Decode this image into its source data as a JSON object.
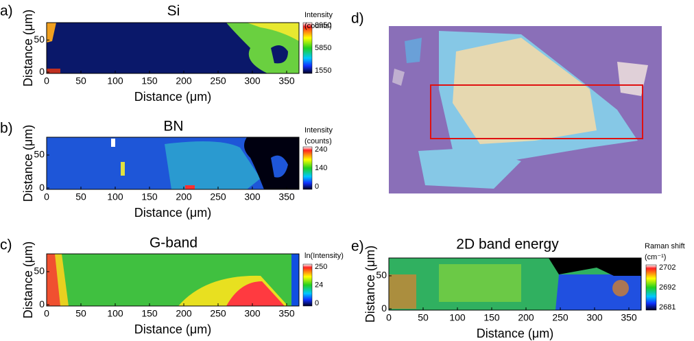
{
  "chart_data": [
    {
      "type": "heatmap",
      "panel_label": "a)",
      "title": "Si",
      "x_label": "Distance (μm)",
      "y_label": "Distance (μm)",
      "xlim": [
        0,
        368
      ],
      "ylim": [
        -2,
        77
      ],
      "xticks": [
        0,
        50,
        100,
        150,
        200,
        250,
        300,
        350
      ],
      "yticks": [
        0,
        50
      ],
      "colorbar_title": [
        "Intensity",
        "(counts)"
      ],
      "colorbar_ticks": [
        8950,
        5850,
        1550
      ]
    },
    {
      "type": "heatmap",
      "panel_label": "b)",
      "title": "BN",
      "x_label": "Distance (μm)",
      "y_label": "Distance (μm)",
      "xlim": [
        0,
        368
      ],
      "ylim": [
        -2,
        77
      ],
      "xticks": [
        0,
        50,
        100,
        150,
        200,
        250,
        300,
        350
      ],
      "yticks": [
        0,
        50
      ],
      "colorbar_title": [
        "Intensity",
        "(counts)"
      ],
      "colorbar_ticks": [
        240,
        140,
        0
      ]
    },
    {
      "type": "heatmap",
      "panel_label": "c)",
      "title": "G-band",
      "x_label": "Distance (μm)",
      "y_label": "Distance (μm)",
      "xlim": [
        0,
        368
      ],
      "ylim": [
        -2,
        77
      ],
      "xticks": [
        0,
        50,
        100,
        150,
        200,
        250,
        300,
        350
      ],
      "yticks": [
        0,
        50
      ],
      "colorbar_title": [
        "ln(Intensity)"
      ],
      "colorbar_ticks": [
        250,
        24,
        0
      ]
    },
    {
      "type": "image",
      "panel_label": "d)"
    },
    {
      "type": "heatmap",
      "panel_label": "e)",
      "title": "2D band energy",
      "x_label": "Distance (μm)",
      "y_label": "Distance (μm)",
      "xlim": [
        0,
        368
      ],
      "ylim": [
        -2,
        77
      ],
      "xticks": [
        0,
        50,
        100,
        150,
        200,
        250,
        300,
        350
      ],
      "yticks": [
        0,
        50
      ],
      "colorbar_title": [
        "Raman shift",
        "(cm⁻¹)"
      ],
      "colorbar_ticks": [
        2702,
        2692,
        2681
      ]
    }
  ]
}
